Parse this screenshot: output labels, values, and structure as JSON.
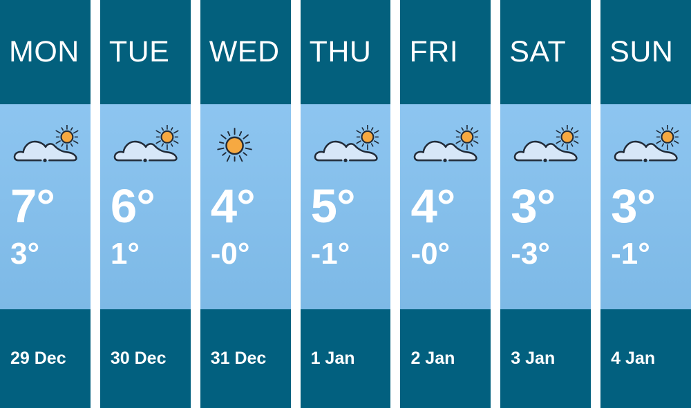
{
  "colors": {
    "header_bg": "#03607D",
    "footer_bg": "#02607F",
    "body_bg_top": "#8DC5F0",
    "body_bg_bottom": "#7DB9E6",
    "gap_bg": "#FFFFFF",
    "text": "#FFFFFF",
    "sun_fill": "#F6A941",
    "icon_outline": "#212B38",
    "cloud_fill": "#D7E7F8"
  },
  "days": [
    {
      "day": "MON",
      "icon": "sun-behind-cloud",
      "high": "7°",
      "low": "3°",
      "date": "29 Dec"
    },
    {
      "day": "TUE",
      "icon": "sun-behind-cloud",
      "high": "6°",
      "low": "1°",
      "date": "30 Dec"
    },
    {
      "day": "WED",
      "icon": "sun",
      "high": "4°",
      "low": "-0°",
      "date": "31 Dec"
    },
    {
      "day": "THU",
      "icon": "sun-behind-cloud",
      "high": "5°",
      "low": "-1°",
      "date": "1 Jan"
    },
    {
      "day": "FRI",
      "icon": "sun-behind-cloud",
      "high": "4°",
      "low": "-0°",
      "date": "2 Jan"
    },
    {
      "day": "SAT",
      "icon": "sun-behind-cloud",
      "high": "3°",
      "low": "-3°",
      "date": "3 Jan"
    },
    {
      "day": "SUN",
      "icon": "sun-behind-cloud",
      "high": "3°",
      "low": "-1°",
      "date": "4 Jan"
    }
  ]
}
